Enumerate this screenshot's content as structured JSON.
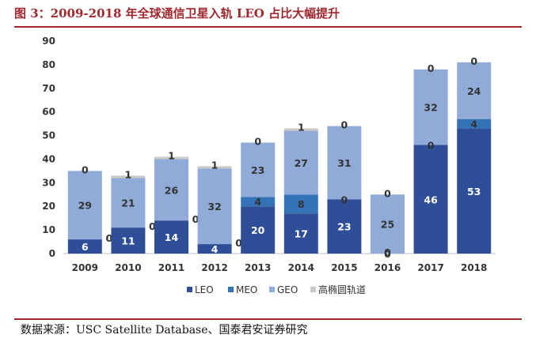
{
  "header": {
    "title": "图 3：2009-2018 年全球通信卫星入轨 LEO 占比大幅提升"
  },
  "footer": {
    "source": "数据来源：USC Satellite Database、国泰君安证券研究"
  },
  "chart_data": {
    "type": "bar",
    "stacked": true,
    "title": "",
    "xlabel": "",
    "ylabel": "",
    "ylim": [
      0,
      90
    ],
    "yticks": [
      0,
      10,
      20,
      30,
      40,
      50,
      60,
      70,
      80,
      90
    ],
    "grid": false,
    "legend_position": "bottom",
    "categories": [
      "2009",
      "2010",
      "2011",
      "2012",
      "2013",
      "2014",
      "2015",
      "2016",
      "2017",
      "2018"
    ],
    "series": [
      {
        "name": "LEO",
        "color": "#2e4f97",
        "values": [
          6,
          11,
          14,
          4,
          20,
          17,
          23,
          0,
          46,
          53
        ]
      },
      {
        "name": "MEO",
        "color": "#3573b8",
        "values": [
          0,
          0,
          0,
          0,
          4,
          8,
          0,
          0,
          0,
          4
        ]
      },
      {
        "name": "GEO",
        "color": "#91abd9",
        "values": [
          29,
          21,
          26,
          32,
          23,
          27,
          31,
          25,
          32,
          24
        ]
      },
      {
        "name": "高椭圆轨道",
        "color": "#c9c9c9",
        "values": [
          0,
          1,
          1,
          1,
          0,
          1,
          0,
          0,
          0,
          0
        ]
      }
    ]
  }
}
